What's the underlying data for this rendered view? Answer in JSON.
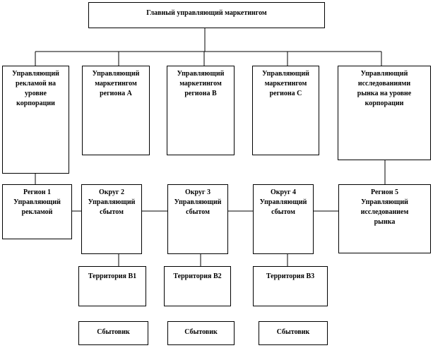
{
  "top": {
    "title": "Главный управляющий маркетингом"
  },
  "level1": [
    {
      "lines": [
        "Управляющий",
        "рекламой на",
        "уровне",
        "корпорации"
      ]
    },
    {
      "lines": [
        "Управляющий",
        "маркетингом",
        "региона А"
      ]
    },
    {
      "lines": [
        "Управляющий",
        "маркетингом",
        "региона В"
      ]
    },
    {
      "lines": [
        "Управляющий",
        "маркетингом",
        "региона С"
      ]
    },
    {
      "lines": [
        "Управляющий",
        "исследованиями",
        "рынка на уровне",
        "корпорации"
      ]
    }
  ],
  "level2": [
    {
      "lines": [
        "Регион 1",
        "Управляющий",
        "рекламой"
      ]
    },
    {
      "lines": [
        "Округ 2",
        "Управляющий",
        "сбытом"
      ]
    },
    {
      "lines": [
        "Округ 3",
        "Управляющий",
        "сбытом"
      ]
    },
    {
      "lines": [
        "Округ 4",
        "Управляющий",
        "сбытом"
      ]
    },
    {
      "lines": [
        "Регион 5",
        "Управляющий",
        "исследованием",
        "рынка"
      ]
    }
  ],
  "territories": [
    "Территория В1",
    "Территория В2",
    "Территория В3"
  ],
  "salesmen": [
    "Сбытовик",
    "Сбытовик",
    "Сбытовик"
  ]
}
